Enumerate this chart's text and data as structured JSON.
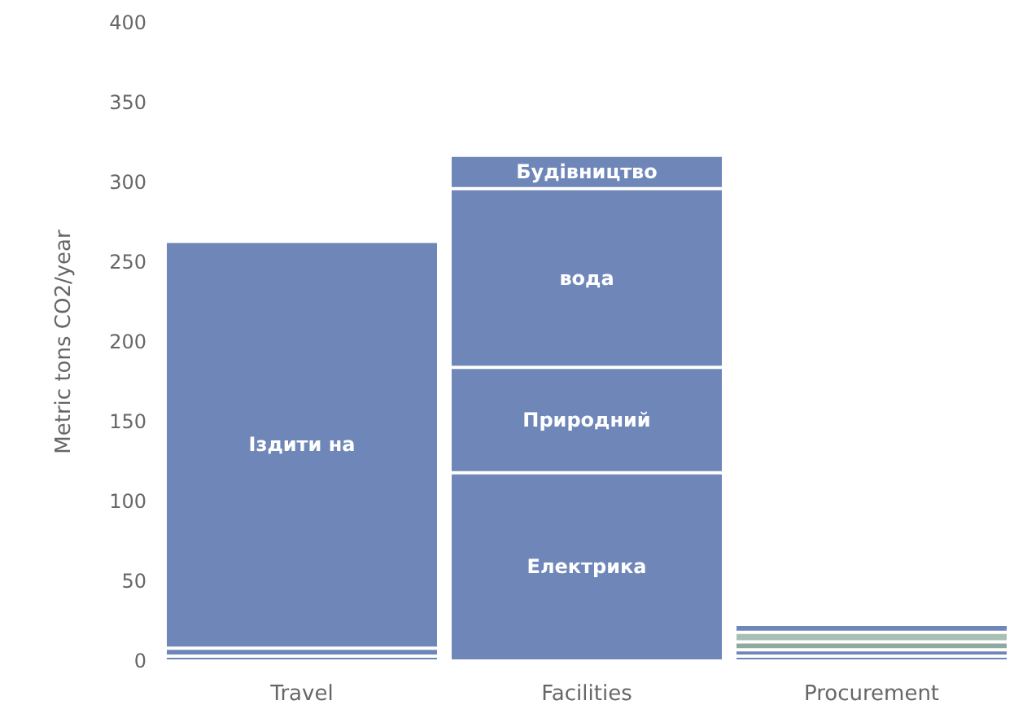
{
  "chart_data": {
    "type": "bar",
    "stacked": true,
    "ylabel": "Metric tons CO2/year",
    "categories": [
      "Travel",
      "Facilities",
      "Procurement"
    ],
    "ylim": [
      0,
      400
    ],
    "yticks": [
      0,
      50,
      100,
      150,
      200,
      250,
      300,
      350,
      400
    ],
    "grid": false,
    "legend": false,
    "series": [
      {
        "color": "#6f86b8",
        "values": [
          3,
          null,
          3
        ]
      },
      {
        "color": "#6f86b8",
        "values": [
          5,
          null,
          4
        ]
      },
      {
        "name": "Іздити на",
        "color": "#6f86b8",
        "values": [
          255,
          null,
          null
        ]
      },
      {
        "name": "Електрика",
        "color": "#6f86b8",
        "values": [
          null,
          118,
          null
        ]
      },
      {
        "name": "Природний",
        "color": "#6f86b8",
        "values": [
          null,
          66,
          null
        ]
      },
      {
        "name": "вода",
        "color": "#6f86b8",
        "values": [
          null,
          112,
          null
        ]
      },
      {
        "name": "Будівництво",
        "color": "#6f86b8",
        "values": [
          null,
          21,
          null
        ]
      },
      {
        "color": "#8fa8a0",
        "values": [
          null,
          null,
          5
        ]
      },
      {
        "color": "#a8c0b4",
        "values": [
          null,
          null,
          6
        ]
      },
      {
        "color": "#6f86b8",
        "values": [
          null,
          null,
          5
        ]
      }
    ]
  }
}
